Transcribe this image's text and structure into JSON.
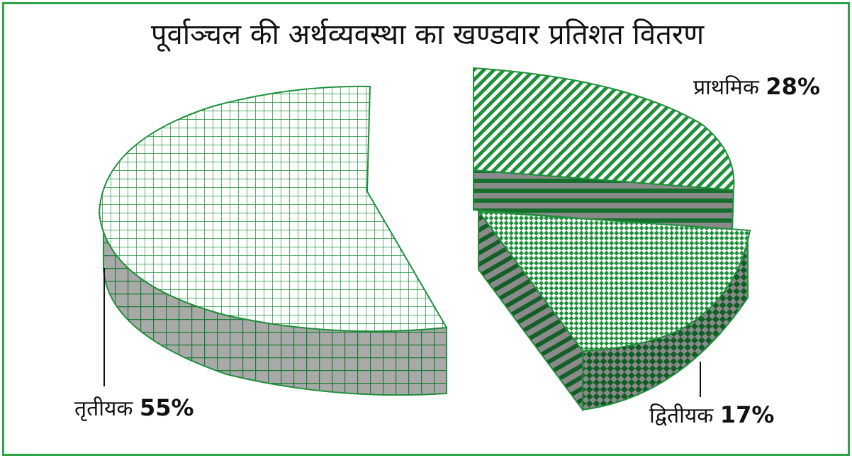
{
  "chart_data": {
    "type": "pie",
    "title": "पूर्वाञ्चल की अर्थव्यवस्था का खण्डवार प्रतिशत वितरण",
    "slices": [
      {
        "label": "प्राथमिक",
        "value": 28,
        "value_label": "28%"
      },
      {
        "label": "द्वितीयक",
        "value": 17,
        "value_label": "17%"
      },
      {
        "label": "तृतीयक",
        "value": 55,
        "value_label": "55%"
      }
    ],
    "style": "3d-exploded",
    "colors": {
      "accent": "#1f8f3a",
      "light": "#ffffff",
      "side": "#9a9a9a",
      "border": "#2ea34a"
    }
  }
}
